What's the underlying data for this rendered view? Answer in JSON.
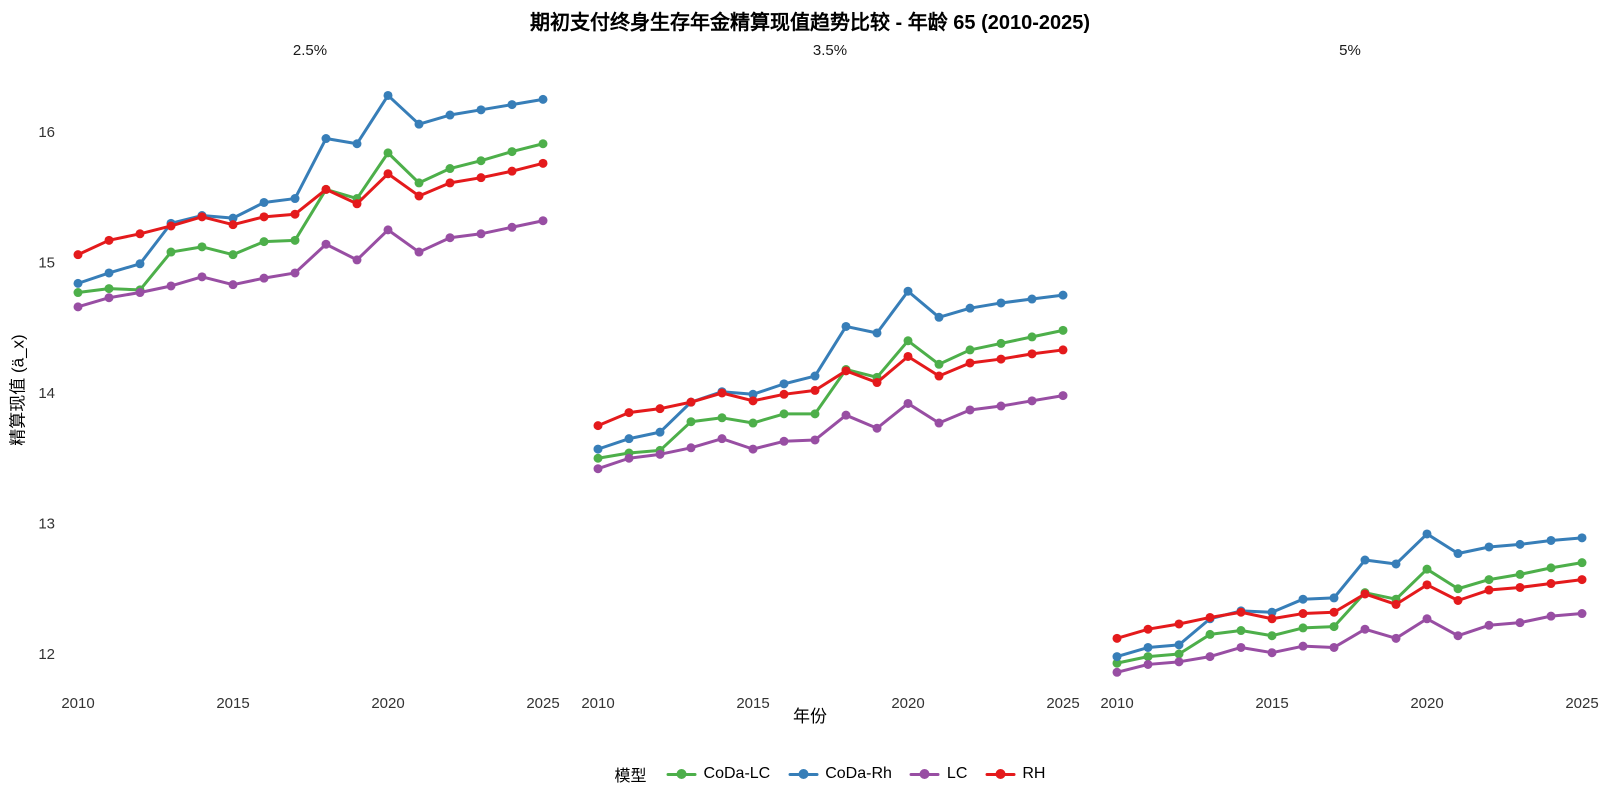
{
  "title": "期初支付终身生存年金精算现值趋势比较 - 年龄 65 (2010-2025)",
  "legend": {
    "title": "模型"
  },
  "colors": {
    "CoDa-LC": "#4DAF4A",
    "CoDa-Rh": "#377EB8",
    "LC": "#984EA3",
    "RH": "#E41A1C"
  },
  "chart_data": {
    "type": "line",
    "title": "期初支付终身生存年金精算现值趋势比较 - 年龄 65 (2010-2025)",
    "xlabel": "年份",
    "ylabel": "精算现值 (ä_x)",
    "x": [
      2010,
      2011,
      2012,
      2013,
      2014,
      2015,
      2016,
      2017,
      2018,
      2019,
      2020,
      2021,
      2022,
      2023,
      2024,
      2025
    ],
    "x_ticks": [
      2010,
      2015,
      2020,
      2025
    ],
    "y_ticks": [
      16,
      15,
      14,
      13,
      12
    ],
    "ylim": [
      11.6,
      16.5
    ],
    "grid": false,
    "legend_position": "bottom",
    "marker": "point-on-line",
    "facets": [
      {
        "label": "2.5%",
        "series": [
          {
            "name": "CoDa-LC",
            "color": "#4DAF4A",
            "values": [
              14.77,
              14.8,
              14.79,
              15.08,
              15.12,
              15.06,
              15.16,
              15.17,
              15.56,
              15.49,
              15.84,
              15.61,
              15.72,
              15.78,
              15.85,
              15.91
            ]
          },
          {
            "name": "CoDa-Rh",
            "color": "#377EB8",
            "values": [
              14.84,
              14.92,
              14.99,
              15.3,
              15.36,
              15.34,
              15.46,
              15.49,
              15.95,
              15.91,
              16.28,
              16.06,
              16.13,
              16.17,
              16.21,
              16.25
            ]
          },
          {
            "name": "LC",
            "color": "#984EA3",
            "values": [
              14.66,
              14.73,
              14.77,
              14.82,
              14.89,
              14.83,
              14.88,
              14.92,
              15.14,
              15.02,
              15.25,
              15.08,
              15.19,
              15.22,
              15.27,
              15.32
            ]
          },
          {
            "name": "RH",
            "color": "#E41A1C",
            "values": [
              15.06,
              15.17,
              15.22,
              15.28,
              15.35,
              15.29,
              15.35,
              15.37,
              15.56,
              15.45,
              15.68,
              15.51,
              15.61,
              15.65,
              15.7,
              15.76
            ]
          }
        ]
      },
      {
        "label": "3.5%",
        "series": [
          {
            "name": "CoDa-LC",
            "color": "#4DAF4A",
            "values": [
              13.5,
              13.54,
              13.56,
              13.78,
              13.81,
              13.77,
              13.84,
              13.84,
              14.18,
              14.12,
              14.4,
              14.22,
              14.33,
              14.38,
              14.43,
              14.48
            ]
          },
          {
            "name": "CoDa-Rh",
            "color": "#377EB8",
            "values": [
              13.57,
              13.65,
              13.7,
              13.93,
              14.01,
              13.99,
              14.07,
              14.13,
              14.51,
              14.46,
              14.78,
              14.58,
              14.65,
              14.69,
              14.72,
              14.75
            ]
          },
          {
            "name": "LC",
            "color": "#984EA3",
            "values": [
              13.42,
              13.5,
              13.53,
              13.58,
              13.65,
              13.57,
              13.63,
              13.64,
              13.83,
              13.73,
              13.92,
              13.77,
              13.87,
              13.9,
              13.94,
              13.98
            ]
          },
          {
            "name": "RH",
            "color": "#E41A1C",
            "values": [
              13.75,
              13.85,
              13.88,
              13.93,
              14.0,
              13.94,
              13.99,
              14.02,
              14.17,
              14.08,
              14.28,
              14.13,
              14.23,
              14.26,
              14.3,
              14.33
            ]
          }
        ]
      },
      {
        "label": "5%",
        "series": [
          {
            "name": "CoDa-LC",
            "color": "#4DAF4A",
            "values": [
              11.93,
              11.98,
              12.0,
              12.15,
              12.18,
              12.14,
              12.2,
              12.21,
              12.47,
              12.42,
              12.65,
              12.5,
              12.57,
              12.61,
              12.66,
              12.7
            ]
          },
          {
            "name": "CoDa-Rh",
            "color": "#377EB8",
            "values": [
              11.98,
              12.05,
              12.07,
              12.27,
              12.33,
              12.32,
              12.42,
              12.43,
              12.72,
              12.69,
              12.92,
              12.77,
              12.82,
              12.84,
              12.87,
              12.89
            ]
          },
          {
            "name": "LC",
            "color": "#984EA3",
            "values": [
              11.86,
              11.92,
              11.94,
              11.98,
              12.05,
              12.01,
              12.06,
              12.05,
              12.19,
              12.12,
              12.27,
              12.14,
              12.22,
              12.24,
              12.29,
              12.31
            ]
          },
          {
            "name": "RH",
            "color": "#E41A1C",
            "values": [
              12.12,
              12.19,
              12.23,
              12.28,
              12.32,
              12.27,
              12.31,
              12.32,
              12.46,
              12.38,
              12.53,
              12.41,
              12.49,
              12.51,
              12.54,
              12.57
            ]
          }
        ]
      }
    ]
  }
}
